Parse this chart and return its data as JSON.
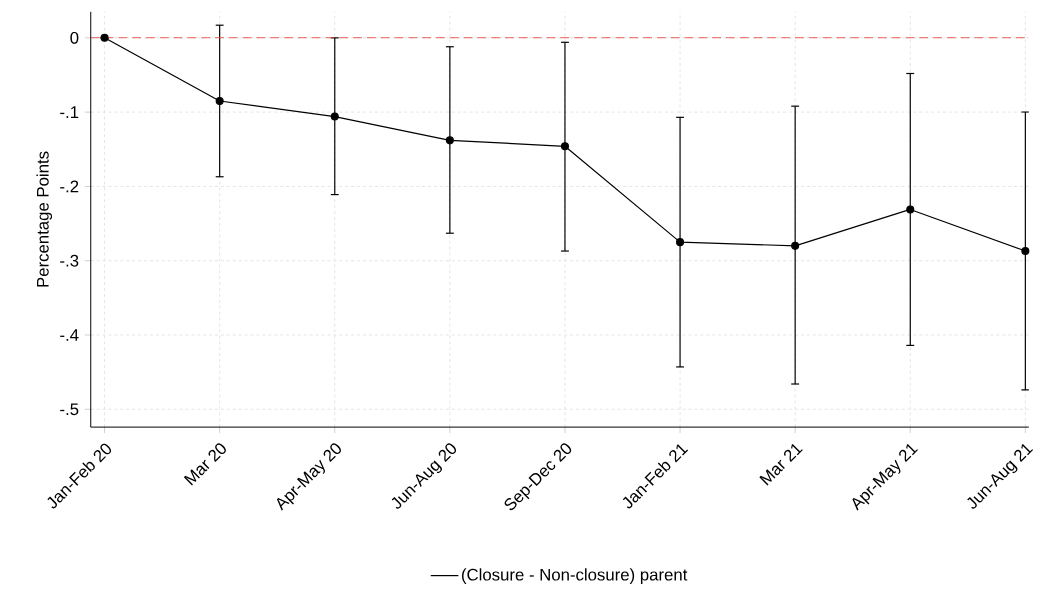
{
  "chart_data": {
    "type": "line",
    "ylabel": "Percentage Points",
    "categories": [
      "Jan-Feb 20",
      "Mar 20",
      "Apr-May 20",
      "Jun-Aug 20",
      "Sep-Dec 20",
      "Jan-Feb 21",
      "Mar 21",
      "Apr-May 21",
      "Jun-Aug 21"
    ],
    "series": [
      {
        "name": "(Closure - Non-closure) parent",
        "color": "#000000",
        "values": [
          0,
          -0.085,
          -0.106,
          -0.138,
          -0.146,
          -0.275,
          -0.28,
          -0.231,
          -0.287
        ],
        "errors": [
          null,
          [
            -0.187,
            0.017
          ],
          [
            -0.211,
            0.0
          ],
          [
            -0.263,
            -0.012
          ],
          [
            -0.287,
            -0.006
          ],
          [
            -0.443,
            -0.107
          ],
          [
            -0.466,
            -0.092
          ],
          [
            -0.414,
            -0.048
          ],
          [
            -0.474,
            -0.1
          ]
        ]
      }
    ],
    "ylim": [
      -0.524,
      0.035
    ],
    "yticks": [
      {
        "value": 0,
        "label": "0"
      },
      {
        "value": -0.1,
        "label": "-.1"
      },
      {
        "value": -0.2,
        "label": "-.2"
      },
      {
        "value": -0.3,
        "label": "-.3"
      },
      {
        "value": -0.4,
        "label": "-.4"
      },
      {
        "value": -0.5,
        "label": "-.5"
      }
    ],
    "ref_lines": [
      {
        "axis": "y",
        "value": 0,
        "color": "#e8413c",
        "line_style": "dashed"
      }
    ],
    "grid": true,
    "legend": "bottom",
    "marker": "circle",
    "line_style": "solid"
  }
}
